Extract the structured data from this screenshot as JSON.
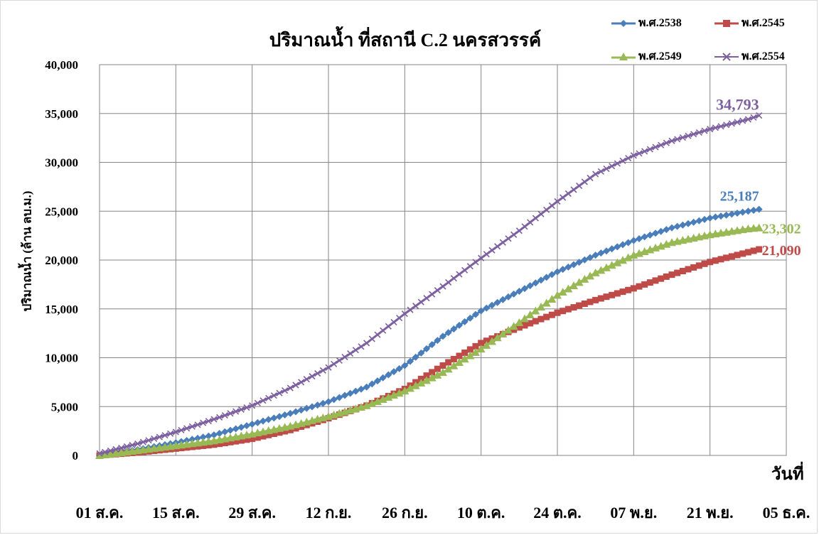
{
  "chart_data": {
    "type": "line",
    "title": "ปริมาณน้ำ ที่สถานี C.2 นครสวรรค์",
    "xlabel": "วันที่",
    "ylabel": "ปริมาณน้ำ (ล้าน ลบ.ม.)",
    "x_tick_labels": [
      "01 ส.ค.",
      "15 ส.ค.",
      "29 ส.ค.",
      "12 ก.ย.",
      "26 ก.ย.",
      "10 ต.ค.",
      "24 ต.ค.",
      "07 พ.ย.",
      "21 พ.ย.",
      "05 ธ.ค."
    ],
    "y_tick_labels": [
      "0",
      "5,000",
      "10,000",
      "15,000",
      "20,000",
      "25,000",
      "30,000",
      "35,000",
      "40,000"
    ],
    "ylim": [
      0,
      40000
    ],
    "x_range_days": [
      0,
      126
    ],
    "x_unit": "days from 01 ส.ค.",
    "grid": true,
    "legend_position": "top-right",
    "series": [
      {
        "name": "พ.ศ.2538",
        "color": "#4a7ebb",
        "marker": "diamond",
        "x": [
          0,
          7,
          14,
          21,
          28,
          35,
          42,
          49,
          56,
          63,
          70,
          77,
          84,
          91,
          98,
          105,
          112,
          119,
          121
        ],
        "y": [
          0,
          600,
          1300,
          2100,
          3200,
          4300,
          5500,
          7000,
          9200,
          12200,
          14800,
          16800,
          18800,
          20500,
          22000,
          23300,
          24300,
          25000,
          25187
        ],
        "end_label": "25,187"
      },
      {
        "name": "พ.ศ.2545",
        "color": "#be4b48",
        "marker": "square",
        "x": [
          0,
          7,
          14,
          21,
          28,
          35,
          42,
          49,
          56,
          63,
          70,
          77,
          84,
          91,
          98,
          105,
          112,
          119,
          121
        ],
        "y": [
          0,
          300,
          700,
          1100,
          1700,
          2600,
          3800,
          5100,
          6800,
          9200,
          11500,
          13100,
          14600,
          15900,
          17100,
          18500,
          19800,
          20800,
          21090
        ],
        "end_label": "21,090"
      },
      {
        "name": "พ.ศ.2549",
        "color": "#98b954",
        "marker": "triangle",
        "x": [
          0,
          7,
          14,
          21,
          28,
          35,
          42,
          49,
          56,
          63,
          70,
          77,
          84,
          91,
          98,
          105,
          112,
          119,
          121
        ],
        "y": [
          0,
          500,
          1000,
          1500,
          2200,
          3000,
          4000,
          5100,
          6600,
          8500,
          10900,
          13600,
          16400,
          18700,
          20500,
          21800,
          22600,
          23200,
          23302
        ],
        "end_label": "23,302"
      },
      {
        "name": "พ.ศ.2554",
        "color": "#7d60a0",
        "marker": "x",
        "x": [
          0,
          7,
          14,
          21,
          28,
          35,
          42,
          49,
          56,
          63,
          70,
          77,
          84,
          91,
          98,
          105,
          112,
          119,
          121
        ],
        "y": [
          200,
          1200,
          2400,
          3700,
          5100,
          6900,
          9000,
          11500,
          14500,
          17300,
          20200,
          23000,
          26000,
          28800,
          30700,
          32200,
          33400,
          34400,
          34793
        ],
        "end_label": "34,793"
      }
    ]
  }
}
